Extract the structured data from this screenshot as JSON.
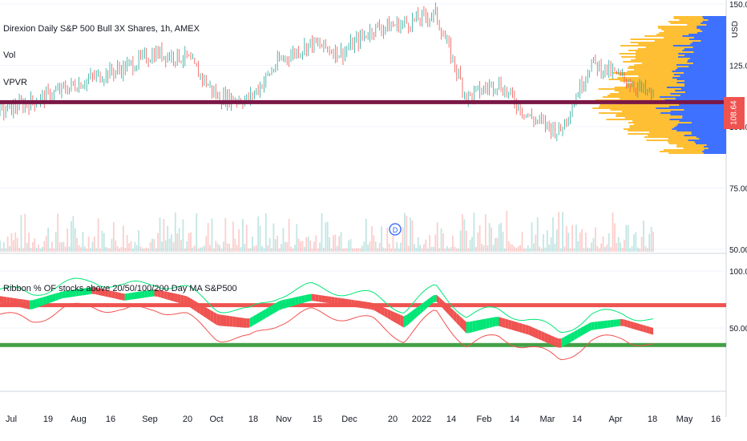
{
  "header": {
    "title": "Direxion Daily S&P 500 Bull 3X Shares, 1h, AMEX",
    "vol_label": "Vol",
    "vpvr_label": "VPVR",
    "currency": "USD",
    "event_marker": "D"
  },
  "indicator": {
    "title": "Ribbon % OF stocks above 20/50/100/200 Day MA S&P500"
  },
  "colors": {
    "up": "#00e676",
    "down": "#ef5350",
    "vp_orange": "#ffb81f",
    "vp_blue": "#2962ff",
    "price_line": "#7b1746",
    "upper_line": "#ef5350",
    "lower_line": "#43a047"
  },
  "chart_data": [
    {
      "type": "line",
      "name": "price",
      "y_axis_ticks": [
        "150.00",
        "125.00",
        "100.00",
        "75.00",
        "50.00"
      ],
      "ylim": [
        50,
        150
      ],
      "current_price": "108.64",
      "current_line": 110,
      "x": [
        "2021-06-25",
        "2021-07-06",
        "2021-07-20",
        "2021-08-03",
        "2021-08-17",
        "2021-08-31",
        "2021-09-14",
        "2021-09-28",
        "2021-10-12",
        "2021-10-26",
        "2021-11-09",
        "2021-11-23",
        "2021-12-07",
        "2021-12-21",
        "2022-01-04",
        "2022-01-18",
        "2022-02-01",
        "2022-02-15",
        "2022-03-01",
        "2022-03-15",
        "2022-03-29",
        "2022-04-12"
      ],
      "values": [
        106,
        110,
        115,
        120,
        124,
        130,
        128,
        112,
        111,
        127,
        134,
        130,
        140,
        142,
        146,
        112,
        118,
        104,
        98,
        126,
        120,
        112
      ]
    },
    {
      "type": "bar",
      "name": "volume",
      "note_labels": []
    },
    {
      "type": "line",
      "name": "breadth ribbon",
      "y_axis_ticks": [
        "100.00",
        "50.00"
      ],
      "ylim": [
        0,
        100
      ],
      "reference_lines": [
        70,
        35
      ],
      "x": [
        "2021-06-25",
        "2021-07-06",
        "2021-07-20",
        "2021-08-03",
        "2021-08-17",
        "2021-08-31",
        "2021-09-14",
        "2021-09-28",
        "2021-10-12",
        "2021-10-26",
        "2021-11-09",
        "2021-11-23",
        "2021-12-07",
        "2021-12-21",
        "2022-01-04",
        "2022-01-18",
        "2022-02-01",
        "2022-02-15",
        "2022-03-01",
        "2022-03-15",
        "2022-03-29",
        "2022-04-12"
      ],
      "series": [
        {
          "values": [
            78,
            74,
            82,
            86,
            80,
            84,
            78,
            62,
            58,
            74,
            80,
            76,
            72,
            60,
            80,
            55,
            60,
            52,
            40,
            55,
            58,
            50
          ]
        },
        {
          "values": [
            72,
            66,
            76,
            80,
            74,
            78,
            70,
            52,
            50,
            66,
            74,
            70,
            66,
            50,
            74,
            45,
            52,
            44,
            32,
            48,
            52,
            44
          ]
        }
      ]
    }
  ],
  "x_axis": {
    "ticks": [
      "Jul",
      "19",
      "Aug",
      "16",
      "Sep",
      "20",
      "Oct",
      "18",
      "Nov",
      "15",
      "Dec",
      "20",
      "2022",
      "14",
      "Feb",
      "14",
      "Mar",
      "14",
      "Apr",
      "18",
      "May",
      "16"
    ]
  }
}
